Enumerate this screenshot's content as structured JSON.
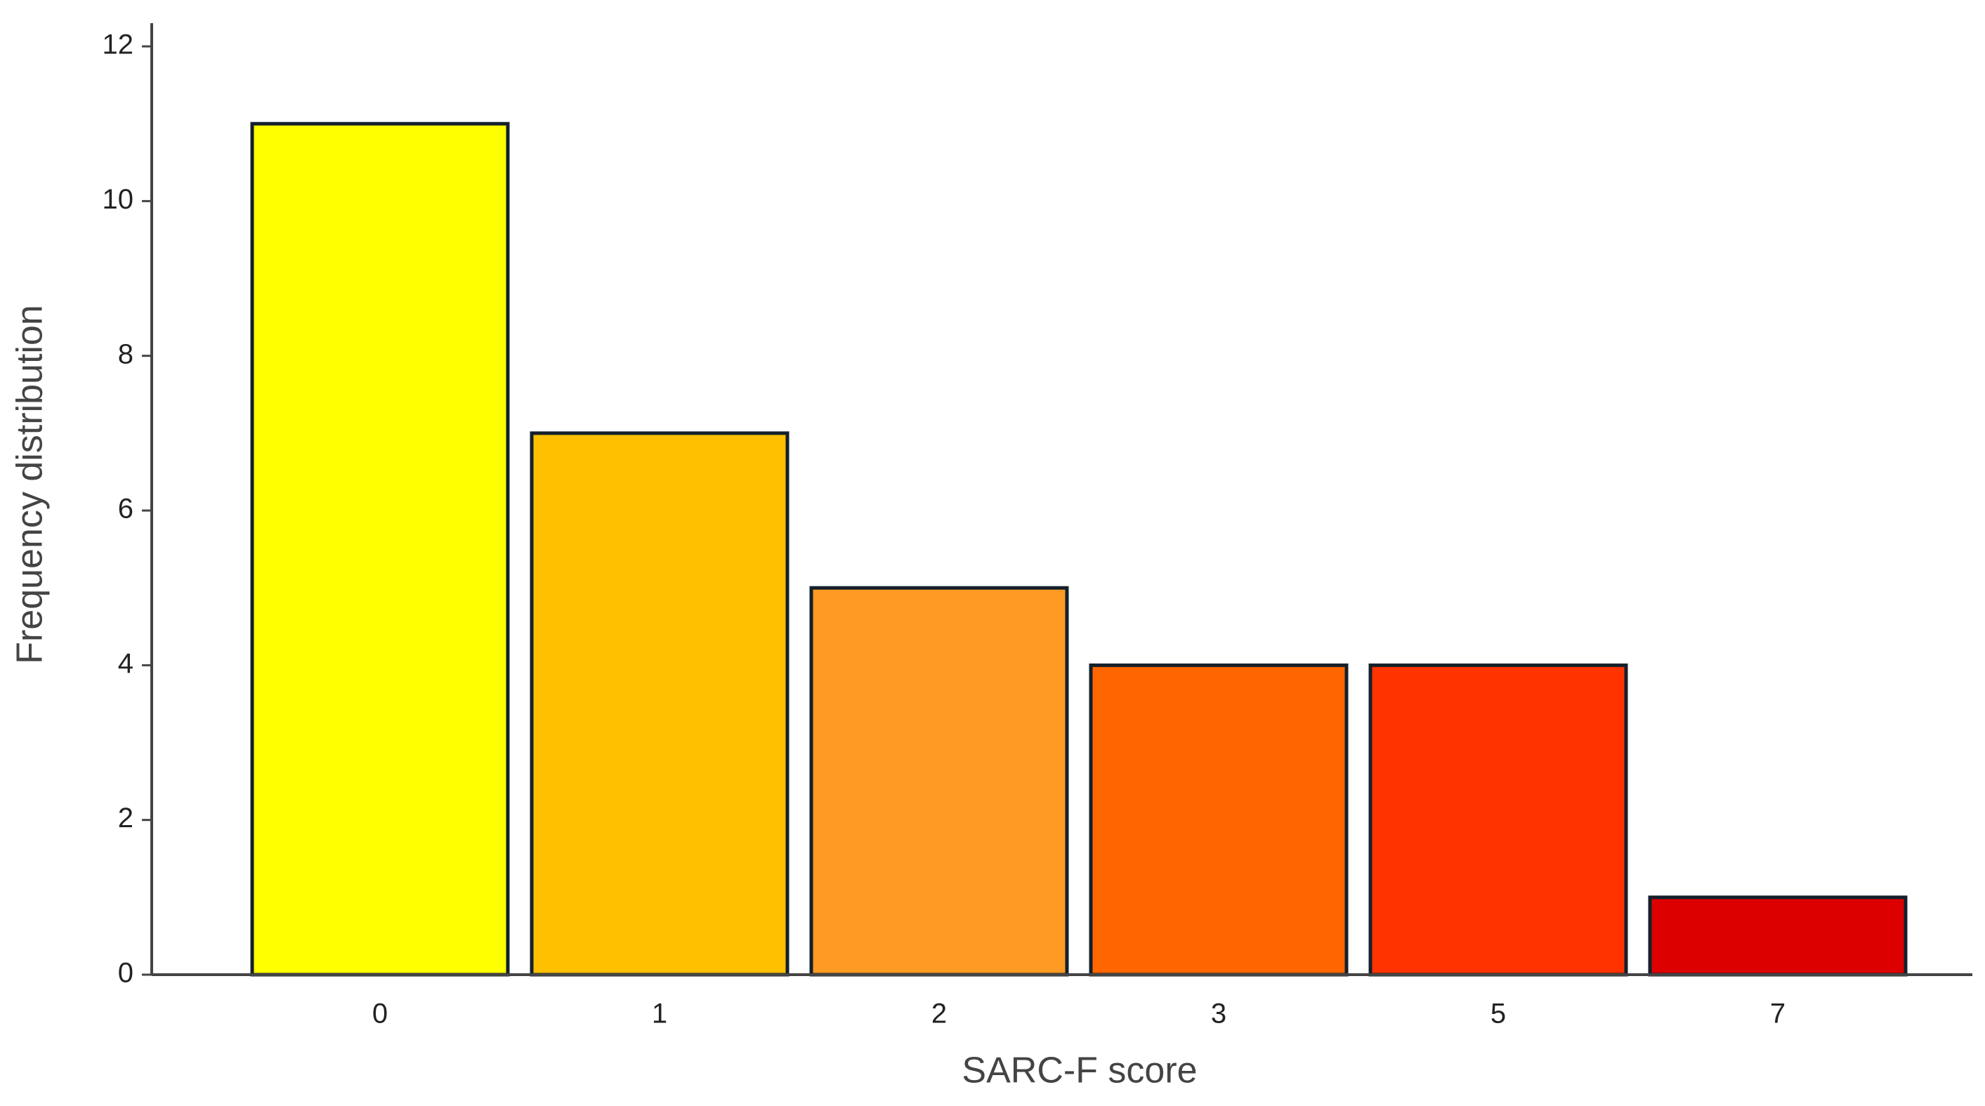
{
  "chart_data": {
    "type": "bar",
    "x_label": "SARC-F score",
    "y_label": "Frequency distribution",
    "categories": [
      "0",
      "1",
      "2",
      "3",
      "5",
      "7"
    ],
    "values": [
      11,
      7,
      5,
      4,
      4,
      1
    ],
    "colors": [
      "#ffff00",
      "#ffc000",
      "#ff9a22",
      "#ff6600",
      "#ff3300",
      "#dd0000"
    ],
    "ylim": [
      0,
      12.3
    ],
    "yticks": [
      0,
      2,
      4,
      6,
      8,
      10,
      12
    ],
    "grid": false
  }
}
